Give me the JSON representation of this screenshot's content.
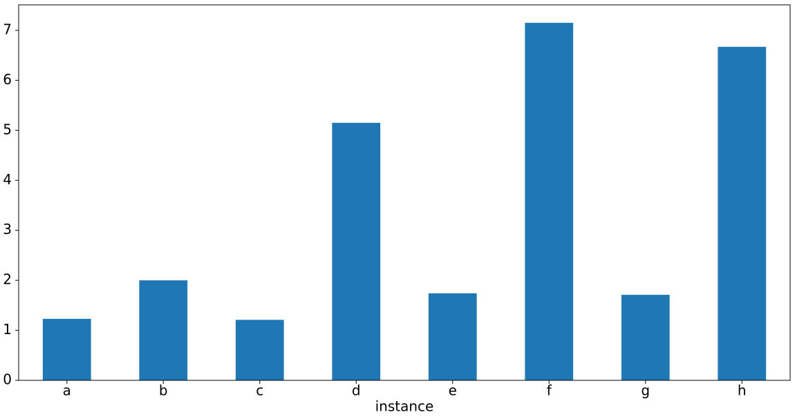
{
  "chart_data": {
    "type": "bar",
    "x_label": "instance",
    "categories": [
      "a",
      "b",
      "c",
      "d",
      "e",
      "f",
      "g",
      "h"
    ],
    "values": [
      1.23,
      2.0,
      1.21,
      5.15,
      1.74,
      7.15,
      1.71,
      6.67
    ],
    "color": "#1f77b4",
    "ylim": [
      0,
      7.51
    ],
    "yticks": [
      0,
      1,
      2,
      3,
      4,
      5,
      6,
      7
    ],
    "grid": false
  }
}
